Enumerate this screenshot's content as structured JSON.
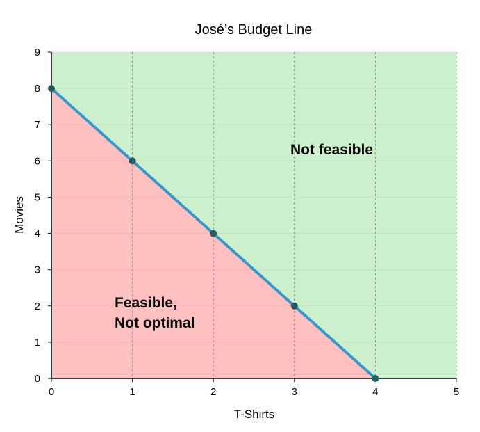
{
  "chart_data": {
    "type": "line",
    "title": "José’s Budget Line",
    "xlabel": "T-Shirts",
    "ylabel": "Movies",
    "xlim": [
      0,
      5
    ],
    "ylim": [
      0,
      9
    ],
    "x_ticks": [
      "0",
      "1",
      "2",
      "3",
      "4",
      "5"
    ],
    "y_ticks": [
      "0",
      "1",
      "2",
      "3",
      "4",
      "5",
      "6",
      "7",
      "8",
      "9"
    ],
    "grid": "vertical dashed at each x tick",
    "series": [
      {
        "x": [
          0,
          1,
          2,
          3,
          4
        ],
        "y": [
          8,
          6,
          4,
          2,
          0
        ],
        "color": "#3399cc",
        "marker_color": "#1f5f5a"
      }
    ],
    "regions": {
      "feasible": {
        "label_line1": "Feasible,",
        "label_line2": "Not optimal",
        "color": "#ffc0c0"
      },
      "not_feasible": {
        "label": "Not feasible",
        "color": "#ccf0cc"
      }
    }
  }
}
